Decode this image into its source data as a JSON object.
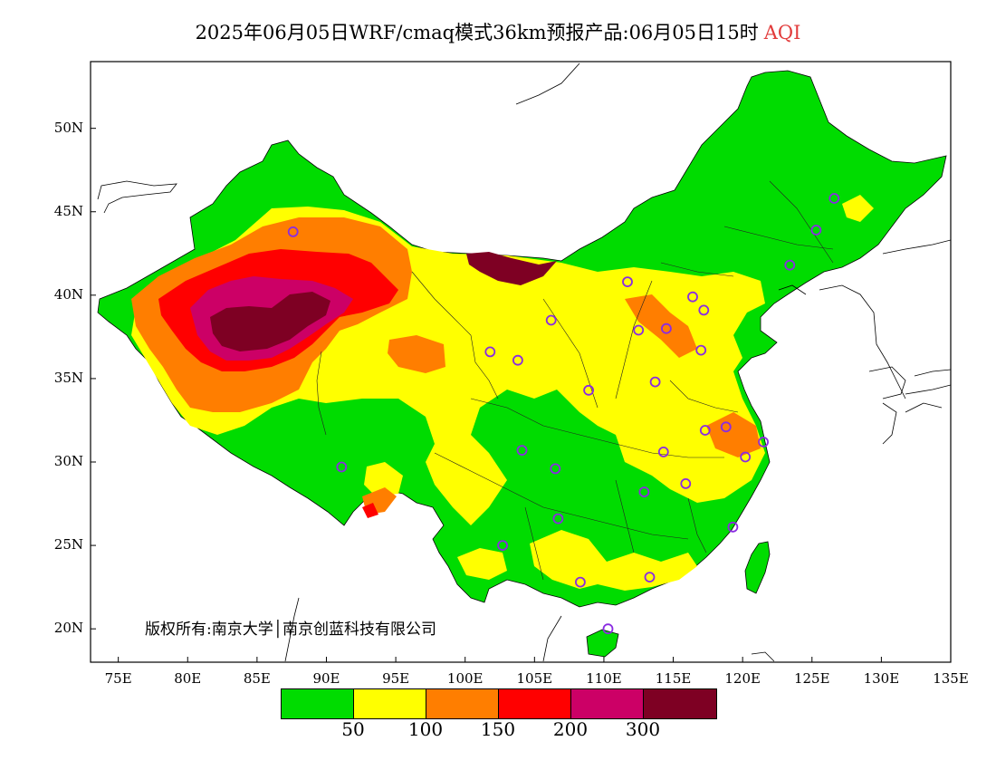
{
  "title": {
    "main": "2025年06月05日WRF/cmaq模式36km预报产品:06月05日15时",
    "product": "AQI"
  },
  "axes": {
    "lat_labels": [
      "50N",
      "45N",
      "40N",
      "35N",
      "30N",
      "25N",
      "20N"
    ],
    "lat_values": [
      50,
      45,
      40,
      35,
      30,
      25,
      20
    ],
    "lon_labels": [
      "75E",
      "80E",
      "85E",
      "90E",
      "95E",
      "100E",
      "105E",
      "110E",
      "115E",
      "120E",
      "125E",
      "130E",
      "135E"
    ],
    "lon_values": [
      75,
      80,
      85,
      90,
      95,
      100,
      105,
      110,
      115,
      120,
      125,
      130,
      135
    ],
    "lon_range": [
      73,
      135
    ],
    "lat_range": [
      18,
      54
    ]
  },
  "copyright": "版权所有:南京大学│南京创蓝科技有限公司",
  "colorbar": {
    "colors": [
      "#00dc00",
      "#ffff00",
      "#ff7e00",
      "#ff0000",
      "#cc0066",
      "#7e0023"
    ],
    "labels": [
      "50",
      "100",
      "150",
      "200",
      "300"
    ]
  },
  "stations": [
    [
      87.6,
      43.8
    ],
    [
      91.1,
      29.7
    ],
    [
      101.8,
      36.6
    ],
    [
      103.8,
      36.1
    ],
    [
      106.2,
      38.5
    ],
    [
      111.7,
      40.8
    ],
    [
      112.5,
      37.9
    ],
    [
      114.5,
      38.0
    ],
    [
      116.4,
      39.9
    ],
    [
      117.2,
      39.1
    ],
    [
      117.0,
      36.7
    ],
    [
      113.7,
      34.8
    ],
    [
      108.9,
      34.3
    ],
    [
      104.1,
      30.7
    ],
    [
      106.5,
      29.6
    ],
    [
      114.3,
      30.6
    ],
    [
      112.9,
      28.2
    ],
    [
      115.9,
      28.7
    ],
    [
      117.3,
      31.9
    ],
    [
      118.8,
      32.1
    ],
    [
      121.5,
      31.2
    ],
    [
      120.2,
      30.3
    ],
    [
      119.3,
      26.1
    ],
    [
      113.3,
      23.1
    ],
    [
      108.3,
      22.8
    ],
    [
      102.7,
      25.0
    ],
    [
      106.7,
      26.6
    ],
    [
      110.3,
      20.0
    ],
    [
      123.4,
      41.8
    ],
    [
      125.3,
      43.9
    ],
    [
      126.6,
      45.8
    ]
  ]
}
